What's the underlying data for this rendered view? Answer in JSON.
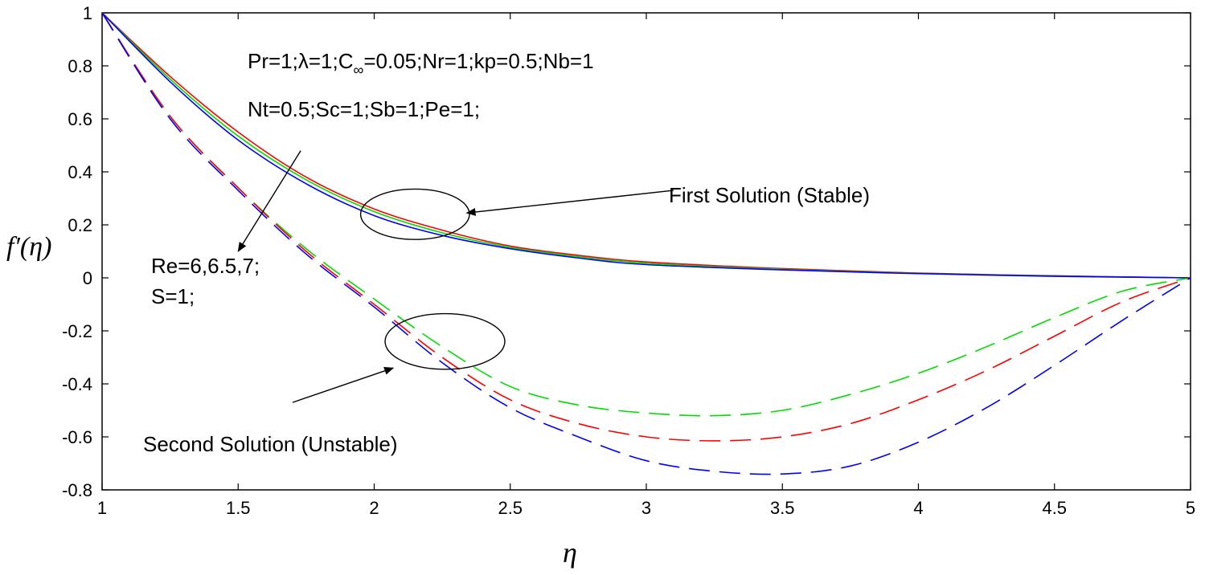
{
  "chart_data": {
    "type": "line",
    "title": "",
    "xlabel": "η",
    "ylabel": "f′(η)",
    "xlim": [
      1,
      5
    ],
    "ylim": [
      -0.8,
      1
    ],
    "xticks": [
      1,
      1.5,
      2,
      2.5,
      3,
      3.5,
      4,
      4.5,
      5
    ],
    "xtick_labels": [
      "1",
      "1.5",
      "2",
      "2.5",
      "3",
      "3.5",
      "4",
      "4.5",
      "5"
    ],
    "yticks": [
      -0.8,
      -0.6,
      -0.4,
      -0.2,
      0,
      0.2,
      0.4,
      0.6,
      0.8,
      1
    ],
    "ytick_labels": [
      "-0.8",
      "-0.6",
      "-0.4",
      "-0.2",
      "0",
      "0.2",
      "0.4",
      "0.6",
      "0.8",
      "1"
    ],
    "grid": false,
    "legend": "none",
    "annotations": {
      "params_line1": "Pr=1;λ=1;C∞=0.05;Nr=1;kp=0.5;Nb=1",
      "params_line1_parts": [
        "Pr=1;λ=1;C",
        "∞",
        "=0.05;Nr=1;kp=0.5;Nb=1"
      ],
      "params_line2": "Nt=0.5;Sc=1;Sb=1;Pe=1;",
      "re_line1": "Re=6,6.5,7;",
      "re_line2": "S=1;",
      "first_solution": "First Solution (Stable)",
      "second_solution": "Second Solution (Unstable)"
    },
    "colors": {
      "red": "#ff0000",
      "green": "#00dd00",
      "blue": "#0000ff"
    },
    "series": [
      {
        "solution": "first",
        "style": "solid",
        "color": "red",
        "x": [
          1,
          1.25,
          1.5,
          1.75,
          2,
          2.25,
          2.5,
          2.75,
          3,
          3.5,
          4,
          4.5,
          5
        ],
        "y": [
          1,
          0.76,
          0.55,
          0.38,
          0.26,
          0.18,
          0.12,
          0.085,
          0.06,
          0.035,
          0.018,
          0.008,
          0
        ]
      },
      {
        "solution": "first",
        "style": "solid",
        "color": "green",
        "x": [
          1,
          1.25,
          1.5,
          1.75,
          2,
          2.25,
          2.5,
          2.75,
          3,
          3.5,
          4,
          4.5,
          5
        ],
        "y": [
          1,
          0.75,
          0.535,
          0.37,
          0.25,
          0.17,
          0.115,
          0.08,
          0.055,
          0.032,
          0.017,
          0.007,
          0
        ]
      },
      {
        "solution": "first",
        "style": "solid",
        "color": "blue",
        "x": [
          1,
          1.25,
          1.5,
          1.75,
          2,
          2.25,
          2.5,
          2.75,
          3,
          3.5,
          4,
          4.5,
          5
        ],
        "y": [
          1,
          0.74,
          0.52,
          0.355,
          0.235,
          0.16,
          0.11,
          0.075,
          0.05,
          0.03,
          0.016,
          0.006,
          0
        ]
      },
      {
        "solution": "second",
        "style": "dashed",
        "color": "green",
        "x": [
          1,
          1.25,
          1.5,
          1.75,
          2,
          2.25,
          2.5,
          2.75,
          3,
          3.25,
          3.5,
          3.75,
          4,
          4.25,
          4.5,
          4.75,
          5
        ],
        "y": [
          1,
          0.61,
          0.34,
          0.11,
          -0.08,
          -0.26,
          -0.41,
          -0.48,
          -0.51,
          -0.52,
          -0.5,
          -0.44,
          -0.36,
          -0.26,
          -0.15,
          -0.05,
          0
        ]
      },
      {
        "solution": "second",
        "style": "dashed",
        "color": "red",
        "x": [
          1,
          1.25,
          1.5,
          1.75,
          2,
          2.25,
          2.5,
          2.75,
          3,
          3.25,
          3.5,
          3.75,
          4,
          4.25,
          4.5,
          4.75,
          5
        ],
        "y": [
          1,
          0.61,
          0.34,
          0.1,
          -0.1,
          -0.3,
          -0.46,
          -0.55,
          -0.6,
          -0.615,
          -0.6,
          -0.55,
          -0.46,
          -0.35,
          -0.22,
          -0.09,
          0
        ]
      },
      {
        "solution": "second",
        "style": "dashed",
        "color": "blue",
        "x": [
          1,
          1.25,
          1.5,
          1.75,
          2,
          2.25,
          2.5,
          2.75,
          3,
          3.25,
          3.5,
          3.75,
          4,
          4.25,
          4.5,
          4.75,
          5
        ],
        "y": [
          1,
          0.6,
          0.33,
          0.09,
          -0.11,
          -0.32,
          -0.49,
          -0.6,
          -0.69,
          -0.73,
          -0.74,
          -0.71,
          -0.62,
          -0.49,
          -0.33,
          -0.16,
          0
        ]
      }
    ]
  }
}
